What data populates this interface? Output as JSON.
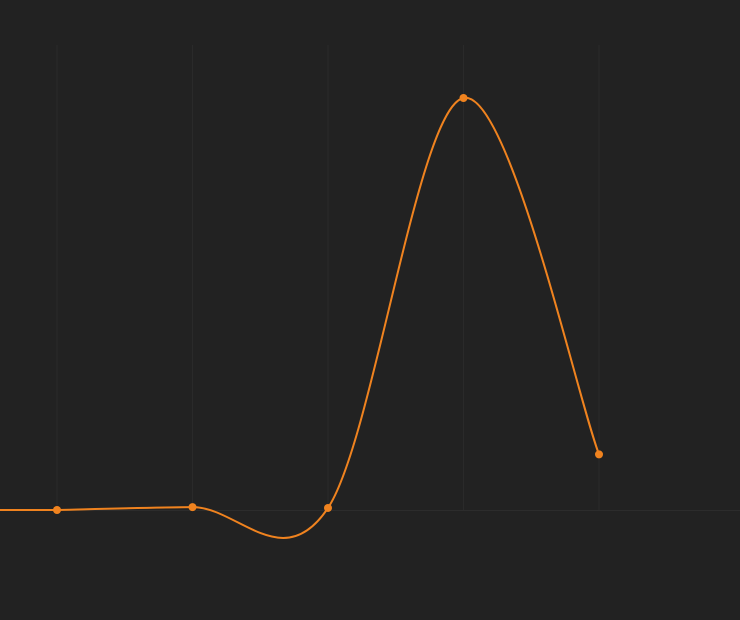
{
  "background_color": "#222222",
  "chart_data": {
    "type": "line",
    "title": "",
    "xlabel": "",
    "ylabel": "",
    "x": [
      0,
      1,
      2,
      3,
      4
    ],
    "series": [
      {
        "name": "",
        "color": "#f0831f",
        "values": [
          0,
          0.7,
          0.5,
          100,
          13.5
        ],
        "smooth": true,
        "markers": true
      }
    ],
    "grid": true,
    "grid_color": "#2a2a2a",
    "baseline_color": "#2c2c2c",
    "tick_labels_visible": false,
    "legend": "none"
  }
}
